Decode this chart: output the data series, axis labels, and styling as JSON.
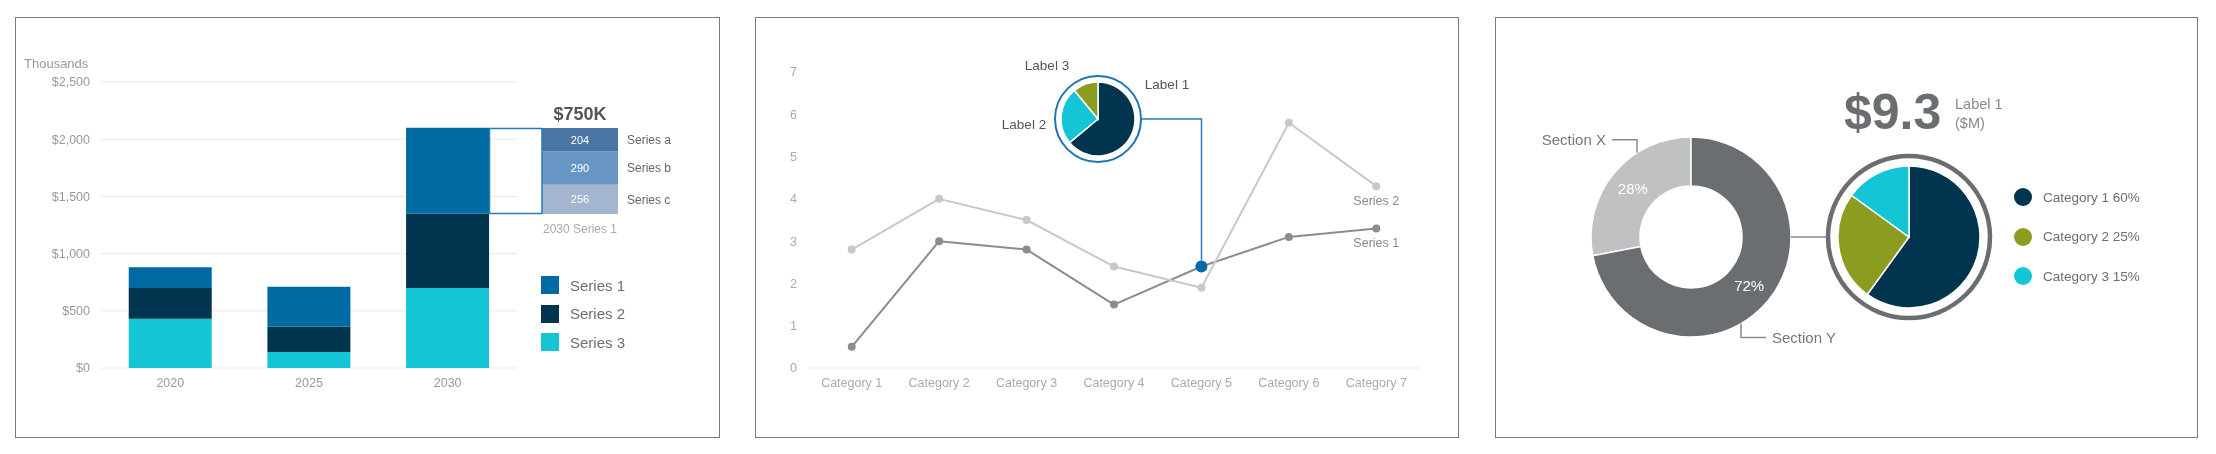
{
  "chart_data": [
    {
      "type": "bar",
      "ylabel": "Thousands",
      "categories": [
        "2020",
        "2025",
        "2030"
      ],
      "stacked": true,
      "series": [
        {
          "name": "Series 3",
          "color": "#14c5d6",
          "values": [
            430,
            140,
            700
          ]
        },
        {
          "name": "Series 2",
          "color": "#00344f",
          "values": [
            270,
            220,
            650
          ]
        },
        {
          "name": "Series 1",
          "color": "#006ba3",
          "values": [
            180,
            350,
            750
          ]
        }
      ],
      "ylim": [
        0,
        2500
      ],
      "yticks": [
        {
          "value": 0,
          "label": "$0"
        },
        {
          "value": 500,
          "label": "$500"
        },
        {
          "value": 1000,
          "label": "$1,000"
        },
        {
          "value": 1500,
          "label": "$1,500"
        },
        {
          "value": 2000,
          "label": "$2,000"
        },
        {
          "value": 2500,
          "label": "$2,500"
        }
      ],
      "grid": "y",
      "legend": "right"
    },
    {
      "type": "bar",
      "title": "$750K",
      "categories": [
        "2030 Series 1"
      ],
      "stacked": true,
      "series": [
        {
          "name": "Series c",
          "color": "#a3b5cf",
          "values": [
            256
          ]
        },
        {
          "name": "Series b",
          "color": "#6796c3",
          "values": [
            290
          ]
        },
        {
          "name": "Series a",
          "color": "#4a76a4",
          "values": [
            204
          ]
        }
      ],
      "data_labels": true,
      "tick_labels": "x"
    },
    {
      "type": "line",
      "categories": [
        "Category 1",
        "Category 2",
        "Category 3",
        "Category 4",
        "Category 5",
        "Category 6",
        "Category 7"
      ],
      "series": [
        {
          "name": "Series 1",
          "color": "#8c8c8c",
          "colors": [
            "#8c8c8c",
            "#8c8c8c",
            "#8c8c8c",
            "#8c8c8c",
            "#0069a6",
            "#8c8c8c",
            "#8c8c8c"
          ],
          "values": [
            0.5,
            3,
            2.8,
            1.5,
            2.4,
            3.1,
            3.3
          ]
        },
        {
          "name": "Series 2",
          "color": "#c8c8c8",
          "values": [
            2.8,
            4,
            3.5,
            2.4,
            1.9,
            5.8,
            4.3
          ]
        }
      ],
      "ylim": [
        0,
        7
      ],
      "yticks": [
        0,
        1,
        2,
        3,
        4,
        5,
        6,
        7
      ],
      "marker": "circle"
    },
    {
      "type": "pie",
      "categories": [
        "Label 1",
        "Label 2",
        "Label 3"
      ],
      "values": [
        64,
        25,
        11
      ],
      "colors": [
        "#00344f",
        "#14c5d6",
        "#8b9c21"
      ]
    },
    {
      "type": "donut",
      "categories": [
        "Section X",
        "Section Y"
      ],
      "values": [
        28,
        72
      ],
      "value_labels": [
        "28%",
        "72%"
      ],
      "colors": [
        "#c0c1c3",
        "#6b6e71"
      ]
    },
    {
      "type": "pie",
      "title": "$9.3",
      "subtitle": "Label 1 ($M)",
      "categories": [
        "Category 1",
        "Category 2",
        "Category 3"
      ],
      "values": [
        60,
        25,
        15
      ],
      "value_labels": [
        "60%",
        "25%",
        "15%"
      ],
      "colors": [
        "#00344f",
        "#8b9c21",
        "#14c5d6"
      ],
      "legend": "right"
    }
  ]
}
